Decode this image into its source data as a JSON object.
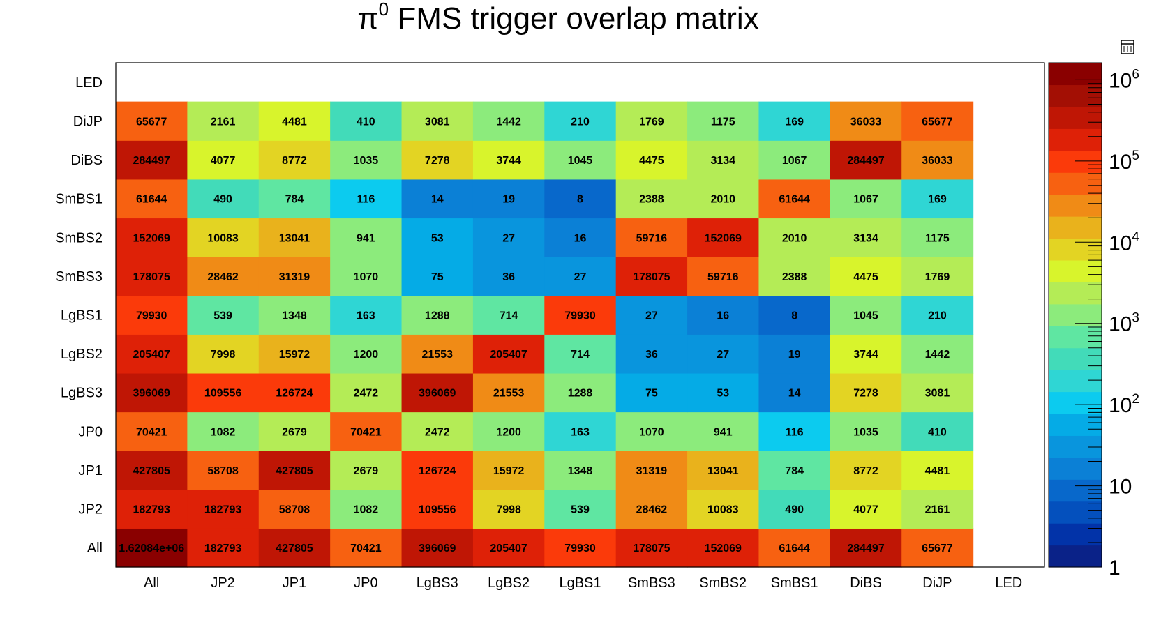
{
  "chart_data": {
    "type": "heatmap",
    "title": "π0 FMS trigger overlap matrix",
    "title_base": "π",
    "title_sup": "0",
    "title_rest": " FMS trigger overlap matrix",
    "x_categories": [
      "All",
      "JP2",
      "JP1",
      "JP0",
      "LgBS3",
      "LgBS2",
      "LgBS1",
      "SmBS3",
      "SmBS2",
      "SmBS1",
      "DiBS",
      "DiJP",
      "LED"
    ],
    "y_categories": [
      "All",
      "JP2",
      "JP1",
      "JP0",
      "LgBS3",
      "LgBS2",
      "LgBS1",
      "SmBS3",
      "SmBS2",
      "SmBS1",
      "DiBS",
      "DiJP",
      "LED"
    ],
    "values": [
      [
        1620840,
        182793,
        427805,
        70421,
        396069,
        205407,
        79930,
        178075,
        152069,
        61644,
        284497,
        65677,
        null
      ],
      [
        182793,
        182793,
        58708,
        1082,
        109556,
        7998,
        539,
        28462,
        10083,
        490,
        4077,
        2161,
        null
      ],
      [
        427805,
        58708,
        427805,
        2679,
        126724,
        15972,
        1348,
        31319,
        13041,
        784,
        8772,
        4481,
        null
      ],
      [
        70421,
        1082,
        2679,
        70421,
        2472,
        1200,
        163,
        1070,
        941,
        116,
        1035,
        410,
        null
      ],
      [
        396069,
        109556,
        126724,
        2472,
        396069,
        21553,
        1288,
        75,
        53,
        14,
        7278,
        3081,
        null
      ],
      [
        205407,
        7998,
        15972,
        1200,
        21553,
        205407,
        714,
        36,
        27,
        19,
        3744,
        1442,
        null
      ],
      [
        79930,
        539,
        1348,
        163,
        1288,
        714,
        79930,
        27,
        16,
        8,
        1045,
        210,
        null
      ],
      [
        178075,
        28462,
        31319,
        1070,
        75,
        36,
        27,
        178075,
        59716,
        2388,
        4475,
        1769,
        null
      ],
      [
        152069,
        10083,
        13041,
        941,
        53,
        27,
        16,
        59716,
        152069,
        2010,
        3134,
        1175,
        null
      ],
      [
        61644,
        490,
        784,
        116,
        14,
        19,
        8,
        2388,
        2010,
        61644,
        1067,
        169,
        null
      ],
      [
        284497,
        4077,
        8772,
        1035,
        7278,
        3744,
        1045,
        4475,
        3134,
        1067,
        284497,
        36033,
        null
      ],
      [
        65677,
        2161,
        4481,
        410,
        3081,
        1442,
        210,
        1769,
        1175,
        169,
        36033,
        65677,
        null
      ],
      [
        null,
        null,
        null,
        null,
        null,
        null,
        null,
        null,
        null,
        null,
        null,
        null,
        null
      ]
    ],
    "cell_labels": [
      [
        "1.62084e+06",
        "182793",
        "427805",
        "70421",
        "396069",
        "205407",
        "79930",
        "178075",
        "152069",
        "61644",
        "284497",
        "65677",
        ""
      ],
      [
        "182793",
        "182793",
        "58708",
        "1082",
        "109556",
        "7998",
        "539",
        "28462",
        "10083",
        "490",
        "4077",
        "2161",
        ""
      ],
      [
        "427805",
        "58708",
        "427805",
        "2679",
        "126724",
        "15972",
        "1348",
        "31319",
        "13041",
        "784",
        "8772",
        "4481",
        ""
      ],
      [
        "70421",
        "1082",
        "2679",
        "70421",
        "2472",
        "1200",
        "163",
        "1070",
        "941",
        "116",
        "1035",
        "410",
        ""
      ],
      [
        "396069",
        "109556",
        "126724",
        "2472",
        "396069",
        "21553",
        "1288",
        "75",
        "53",
        "14",
        "7278",
        "3081",
        ""
      ],
      [
        "205407",
        "7998",
        "15972",
        "1200",
        "21553",
        "205407",
        "714",
        "36",
        "27",
        "19",
        "3744",
        "1442",
        ""
      ],
      [
        "79930",
        "539",
        "1348",
        "163",
        "1288",
        "714",
        "79930",
        "27",
        "16",
        "8",
        "1045",
        "210",
        ""
      ],
      [
        "178075",
        "28462",
        "31319",
        "1070",
        "75",
        "36",
        "27",
        "178075",
        "59716",
        "2388",
        "4475",
        "1769",
        ""
      ],
      [
        "152069",
        "10083",
        "13041",
        "941",
        "53",
        "27",
        "16",
        "59716",
        "152069",
        "2010",
        "3134",
        "1175",
        ""
      ],
      [
        "61644",
        "490",
        "784",
        "116",
        "14",
        "19",
        "8",
        "2388",
        "2010",
        "61644",
        "1067",
        "169",
        ""
      ],
      [
        "284497",
        "4077",
        "8772",
        "1035",
        "7278",
        "3744",
        "1045",
        "4475",
        "3134",
        "1067",
        "284497",
        "36033",
        ""
      ],
      [
        "65677",
        "2161",
        "4481",
        "410",
        "3081",
        "1442",
        "210",
        "1769",
        "1175",
        "169",
        "36033",
        "65677",
        ""
      ],
      [
        "",
        "",
        "",
        "",
        "",
        "",
        "",
        "",
        "",
        "",
        "",
        "",
        ""
      ]
    ],
    "z_scale": "log",
    "z_range": [
      1,
      1620840
    ],
    "colorbar": {
      "labels": [
        {
          "base": "1",
          "sup": "",
          "value": 1
        },
        {
          "base": "10",
          "sup": "",
          "value": 10
        },
        {
          "base": "10",
          "sup": "2",
          "value": 100
        },
        {
          "base": "10",
          "sup": "3",
          "value": 1000
        },
        {
          "base": "10",
          "sup": "4",
          "value": 10000
        },
        {
          "base": "10",
          "sup": "5",
          "value": 100000
        },
        {
          "base": "10",
          "sup": "6",
          "value": 1000000
        }
      ],
      "colors": [
        "#0a2288",
        "#0233a8",
        "#0450bd",
        "#0868cb",
        "#0b80d6",
        "#0995dd",
        "#05abe6",
        "#0ccbef",
        "#2fd6d4",
        "#42dbb9",
        "#5fe6a2",
        "#8ceb7c",
        "#b4ec56",
        "#d8f42c",
        "#e3d423",
        "#e9b21c",
        "#f08b16",
        "#f76111",
        "#fb3a0a",
        "#de2107",
        "#bf1605",
        "#a30f04",
        "#8a0000"
      ],
      "grid": false,
      "position": "right"
    },
    "grid": false,
    "legend": "none"
  }
}
